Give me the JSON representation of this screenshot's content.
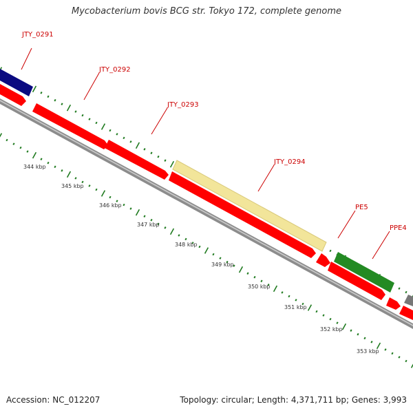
{
  "title": "Mycobacterium bovis BCG str. Tokyo 172, complete genome",
  "footer": {
    "accession": "Accession: NC_012207",
    "summary": "Topology: circular; Length: 4,371,711 bp; Genes: 3,993"
  },
  "colors": {
    "cds_red": "#ff0000",
    "gene_navy": "#0a0a80",
    "gene_khaki": "#f2e59a",
    "gene_green": "#238a23",
    "gene_grey": "#777777",
    "backbone": "#999999",
    "tick_green": "#1f7a1f",
    "label_red": "#cc0000"
  },
  "gene_labels": [
    {
      "id": "jty0291",
      "text": "JTY_0291"
    },
    {
      "id": "jty0292",
      "text": "JTY_0292"
    },
    {
      "id": "jty0293",
      "text": "JTY_0293"
    },
    {
      "id": "jty0294",
      "text": "JTY_0294"
    },
    {
      "id": "pe5",
      "text": "PE5"
    },
    {
      "id": "ppe4",
      "text": "PPE4"
    }
  ],
  "scale_labels": [
    "344 kbp",
    "345 kbp",
    "346 kbp",
    "347 kbp",
    "348 kbp",
    "349 kbp",
    "350 kbp",
    "351 kbp",
    "352 kbp",
    "353 kbp"
  ]
}
